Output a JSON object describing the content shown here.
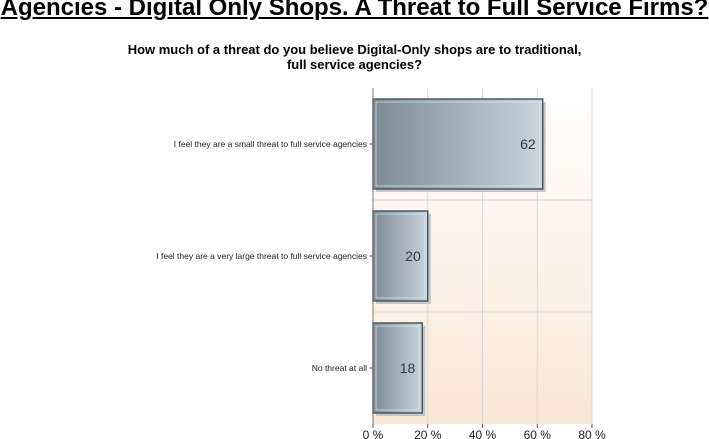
{
  "page": {
    "headline": "Agencies - Digital Only Shops.  A Threat to Full Service Firms?"
  },
  "chart_data": {
    "type": "bar",
    "orientation": "horizontal",
    "title_line1": "How much of a threat do you believe Digital-Only shops are to traditional,",
    "title_line2": "full service agencies?",
    "categories": [
      "I feel they are a small threat to full service agencies",
      "I feel they are a very large threat to full service agencies",
      "No threat at all"
    ],
    "values": [
      62,
      20,
      18
    ],
    "value_labels": [
      "62",
      "20",
      "18"
    ],
    "xlim": [
      0,
      80
    ],
    "x_ticks": [
      0,
      20,
      40,
      60,
      80
    ],
    "x_tick_labels": [
      "0 %",
      "20 %",
      "40 %",
      "60 %",
      "80 %"
    ],
    "grid": true,
    "colors": {
      "bar_dark": "#7d8b95",
      "bar_light": "#c8d5de",
      "bar_edge": "#4e5a63",
      "bg_top": "#ffffff",
      "bg_bottom": "#f9e7d5",
      "grid": "#d9d9d9"
    }
  }
}
